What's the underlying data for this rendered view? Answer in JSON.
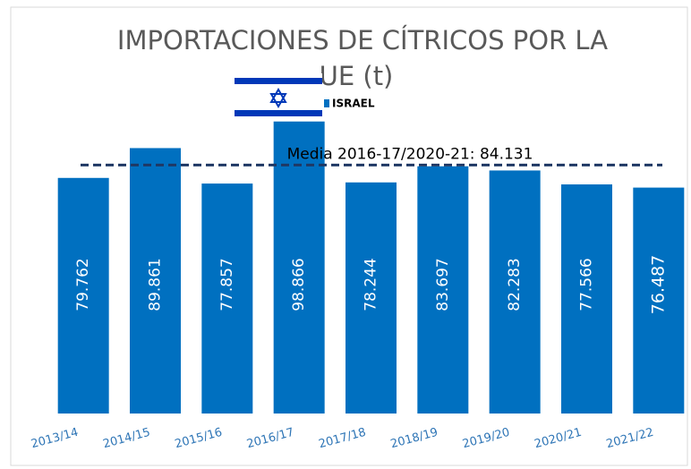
{
  "chart_data": {
    "type": "bar",
    "title": [
      "IMPORTACIONES DE CÍTRICOS POR LA",
      "UE (t)"
    ],
    "legend": "ISRAEL",
    "annotation": "Media 2016-17/2020-21: 84.131",
    "mean_value": 84131,
    "categories": [
      "2013/14",
      "2014/15",
      "2015/16",
      "2016/17",
      "2017/18",
      "2018/19",
      "2019/20",
      "2020/21",
      "2021/22"
    ],
    "values": [
      79762,
      89861,
      77857,
      98866,
      78244,
      83697,
      82283,
      77566,
      76487
    ],
    "value_labels": [
      "79.762",
      "89.861",
      "77.857",
      "98.866",
      "78.244",
      "83.697",
      "82.283",
      "77.566",
      "76.487"
    ],
    "color": "#0070c0",
    "ylim": [
      0,
      100000
    ]
  }
}
